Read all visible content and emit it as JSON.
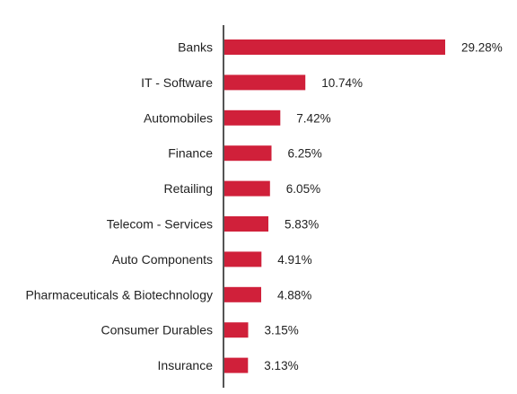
{
  "chart_data": {
    "type": "bar",
    "orientation": "horizontal",
    "title": "",
    "xlabel": "",
    "ylabel": "",
    "categories": [
      "Banks",
      "IT - Software",
      "Automobiles",
      "Finance",
      "Retailing",
      "Telecom - Services",
      "Auto Components",
      "Pharmaceuticals & Biotechnology",
      "Consumer Durables",
      "Insurance"
    ],
    "values": [
      29.28,
      10.74,
      7.42,
      6.25,
      6.05,
      5.83,
      4.91,
      4.88,
      3.15,
      3.13
    ],
    "value_labels": [
      "29.28%",
      "10.74%",
      "7.42%",
      "6.25%",
      "6.05%",
      "5.83%",
      "4.91%",
      "4.88%",
      "3.15%",
      "3.13%"
    ],
    "xlim": [
      0,
      29.28
    ],
    "bar_color": "#d0203a",
    "axis_color": "#555555",
    "grid": false,
    "legend": "none"
  }
}
